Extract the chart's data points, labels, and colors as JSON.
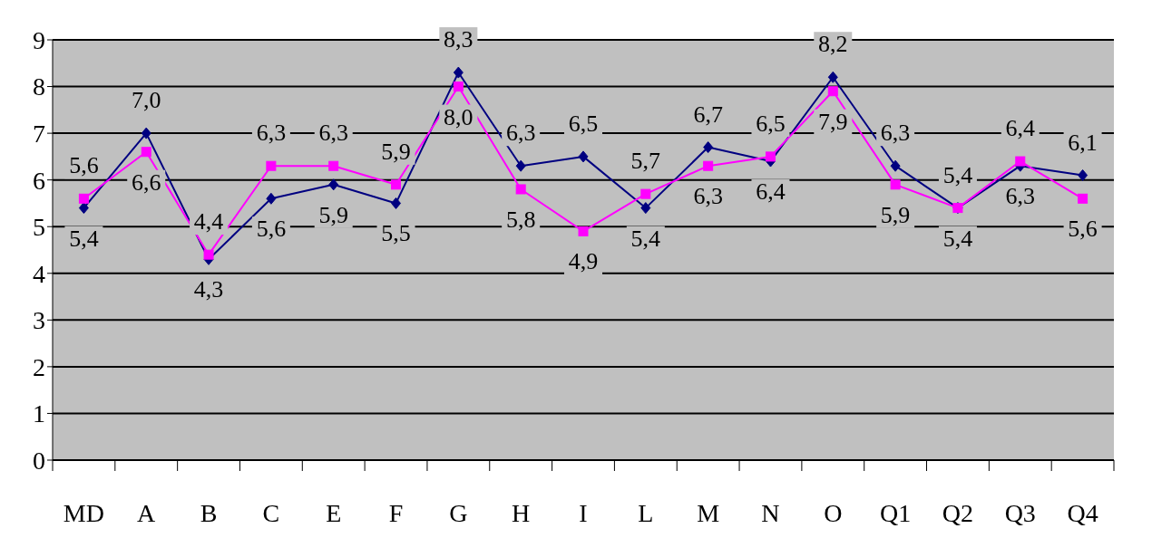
{
  "chart_data": {
    "type": "line",
    "categories": [
      "MD",
      "A",
      "B",
      "C",
      "E",
      "F",
      "G",
      "H",
      "I",
      "L",
      "M",
      "N",
      "O",
      "Q1",
      "Q2",
      "Q3",
      "Q4"
    ],
    "series": [
      {
        "color": "#000080",
        "marker": "diamond",
        "values": [
          5.4,
          7.0,
          4.3,
          5.6,
          5.9,
          5.5,
          8.3,
          6.3,
          6.5,
          5.4,
          6.7,
          6.4,
          8.2,
          6.3,
          5.4,
          6.3,
          6.1
        ],
        "value_labels": [
          "5,4",
          "7,0",
          "4,3",
          "5,6",
          "5,9",
          "5,5",
          "8,3",
          "6,3",
          "6,5",
          "5,4",
          "6,7",
          "6,4",
          "8,2",
          "6,3",
          "5,4",
          "6,3",
          "6,1"
        ]
      },
      {
        "color": "#ff00ff",
        "marker": "square",
        "values": [
          5.6,
          6.6,
          4.4,
          6.3,
          6.3,
          5.9,
          8.0,
          5.8,
          4.9,
          5.7,
          6.3,
          6.5,
          7.9,
          5.9,
          5.4,
          6.4,
          5.6
        ],
        "value_labels": [
          "5,6",
          "6,6",
          "4,4",
          "6,3",
          "6,3",
          "5,9",
          "8,0",
          "5,8",
          "4,9",
          "5,7",
          "6,3",
          "6,5",
          "7,9",
          "5,9",
          "5,4",
          "6,4",
          "5,6"
        ]
      }
    ],
    "ylim": [
      0,
      9
    ],
    "yticks": [
      0,
      1,
      2,
      3,
      4,
      5,
      6,
      7,
      8,
      9
    ],
    "grid": "y",
    "legend": false,
    "line_style": "solid"
  }
}
